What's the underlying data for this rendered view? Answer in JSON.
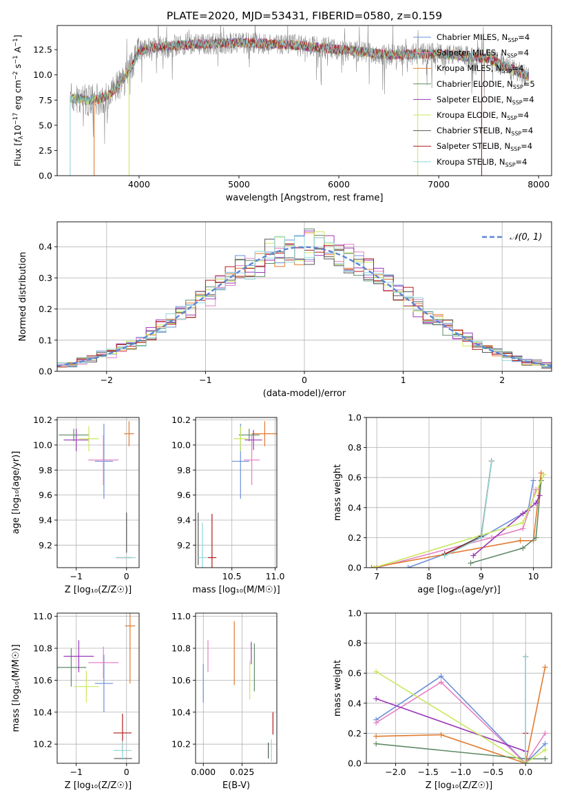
{
  "figure": {
    "title": "PLATE=2020, MJD=53431, FIBERID=0580, z=0.159"
  },
  "colors": {
    "chabrier_miles": "#6a8fd8",
    "salpeter_miles": "#e57fc4",
    "kroupa_miles": "#e07a2f",
    "chabrier_elodie": "#5f8a66",
    "salpeter_elodie": "#9a36b8",
    "kroupa_elodie": "#c7e85a",
    "chabrier_stelib": "#555555",
    "salpeter_stelib": "#b01818",
    "kroupa_stelib": "#8fd6d6",
    "data": "#888888"
  },
  "chart_data": [
    {
      "id": "spectrum",
      "type": "line",
      "title": "PLATE=2020, MJD=53431, FIBERID=0580, z=0.159",
      "xlabel": "wavelength [Angstrom, rest frame]",
      "ylabel_parts": [
        "Flux [",
        "f",
        "λ",
        "10",
        "−17",
        " erg cm",
        "−2",
        " s",
        "−1",
        " A",
        "−1",
        "]"
      ],
      "xlim": [
        3180,
        8130
      ],
      "ylim": [
        0,
        14.9
      ],
      "xticks": [
        4000,
        5000,
        6000,
        7000,
        8000
      ],
      "yticks": [
        0.0,
        2.5,
        5.0,
        7.5,
        10.0,
        12.5
      ],
      "ytick_labels": [
        "0.0",
        "2.5",
        "5.0",
        "7.5",
        "10.0",
        "12.5"
      ],
      "legend": "right",
      "series": [
        {
          "key": "chabrier_miles",
          "name": "Chabrier MILES",
          "nssp": "4"
        },
        {
          "key": "salpeter_miles",
          "name": "Salpeter MILES",
          "nssp": "4"
        },
        {
          "key": "kroupa_miles",
          "name": "Kroupa MILES",
          "nssp": "4"
        },
        {
          "key": "chabrier_elodie",
          "name": "Chabrier ELODIE",
          "nssp": "5"
        },
        {
          "key": "salpeter_elodie",
          "name": "Salpeter ELODIE",
          "nssp": "4"
        },
        {
          "key": "kroupa_elodie",
          "name": "Kroupa ELODIE",
          "nssp": "4"
        },
        {
          "key": "chabrier_stelib",
          "name": "Chabrier STELIB",
          "nssp": "4"
        },
        {
          "key": "salpeter_stelib",
          "name": "Salpeter STELIB",
          "nssp": "4"
        },
        {
          "key": "kroupa_stelib",
          "name": "Kroupa STELIB",
          "nssp": "4"
        }
      ],
      "continuum": {
        "x": [
          3310,
          3400,
          3500,
          3600,
          3700,
          3800,
          3900,
          4000,
          4200,
          4500,
          5000,
          5500,
          6000,
          6500,
          7000,
          7500,
          7900
        ],
        "y": [
          7.7,
          7.6,
          7.5,
          7.6,
          8.0,
          9.0,
          10.4,
          12.4,
          12.8,
          13.0,
          13.2,
          13.0,
          12.5,
          12.0,
          12.1,
          11.6,
          9.8
        ]
      },
      "model_starts": [
        3310,
        3310,
        3310,
        3310,
        3910,
        3310,
        3310,
        3560,
        3310
      ],
      "cutoffs": [
        {
          "x": 3310,
          "color": "kroupa_stelib"
        },
        {
          "x": 3550,
          "color": "kroupa_miles"
        },
        {
          "x": 3900,
          "color": "kroupa_elodie"
        },
        {
          "x": 6790,
          "color": "kroupa_elodie"
        },
        {
          "x": 7430,
          "color": "salpeter_stelib"
        }
      ]
    },
    {
      "id": "residuals",
      "type": "histogram",
      "xlabel": "(data-model)/error",
      "ylabel": "Normed distribution",
      "xlim": [
        -2.5,
        2.5
      ],
      "ylim": [
        0,
        0.48
      ],
      "xticks": [
        -2,
        -1,
        0,
        1,
        2
      ],
      "yticks": [
        0.0,
        0.1,
        0.2,
        0.3,
        0.4
      ],
      "ytick_labels": [
        "0.0",
        "0.1",
        "0.2",
        "0.3",
        "0.4"
      ],
      "bin_width": 0.1,
      "legend": {
        "label": "𝒩(0, 1)",
        "position": "top-right"
      },
      "reference_curve": "normal(0,1)"
    },
    {
      "id": "age-vs-z",
      "type": "scatter",
      "xlabel": "Z [log₁₀(Z/Z☉)]",
      "ylabel": "age  [log₁₀(age/yr)]",
      "xlim": [
        -1.38,
        0.25
      ],
      "ylim": [
        9.02,
        10.22
      ],
      "xticks": [
        -1,
        0
      ],
      "yticks": [
        9.2,
        9.4,
        9.6,
        9.8,
        10.0,
        10.2
      ],
      "points": [
        {
          "key": "chabrier_miles",
          "x": -0.45,
          "y": 9.87,
          "xerr": 0.18,
          "yerr": 0.3
        },
        {
          "key": "salpeter_miles",
          "x": -0.46,
          "y": 9.88,
          "xerr": 0.3,
          "yerr": 0.2
        },
        {
          "key": "kroupa_miles",
          "x": 0.05,
          "y": 10.09,
          "xerr": 0.1,
          "yerr": 0.1
        },
        {
          "key": "chabrier_elodie",
          "x": -1.05,
          "y": 10.08,
          "xerr": 0.3,
          "yerr": 0.05
        },
        {
          "key": "salpeter_elodie",
          "x": -1.0,
          "y": 10.04,
          "xerr": 0.25,
          "yerr": 0.09
        },
        {
          "key": "kroupa_elodie",
          "x": -0.75,
          "y": 10.05,
          "xerr": 0.2,
          "yerr": 0.1
        },
        {
          "key": "chabrier_stelib",
          "x": 0.0,
          "y": 9.3,
          "xerr": 0.0,
          "yerr": 0.16
        },
        {
          "key": "salpeter_stelib",
          "x": -0.05,
          "y": 9.1,
          "xerr": 0.15,
          "yerr": 0.0
        },
        {
          "key": "kroupa_stelib",
          "x": -0.02,
          "y": 9.1,
          "xerr": 0.2,
          "yerr": 0.0
        }
      ]
    },
    {
      "id": "age-vs-mass",
      "type": "scatter",
      "xlabel": "mass [log₁₀(M/M☉)]",
      "ylabel": "",
      "xlim": [
        10.08,
        11.02
      ],
      "ylim": [
        9.02,
        10.22
      ],
      "xticks": [
        10.5,
        11.0
      ],
      "yticks": [
        9.2,
        9.4,
        9.6,
        9.8,
        10.0,
        10.2
      ],
      "points": [
        {
          "key": "chabrier_miles",
          "x": 10.6,
          "y": 9.87,
          "xerr": 0.1,
          "yerr": 0.3
        },
        {
          "key": "salpeter_miles",
          "x": 10.73,
          "y": 9.88,
          "xerr": 0.09,
          "yerr": 0.2
        },
        {
          "key": "kroupa_miles",
          "x": 10.88,
          "y": 10.09,
          "xerr": 0.15,
          "yerr": 0.1
        },
        {
          "key": "chabrier_elodie",
          "x": 10.7,
          "y": 10.08,
          "xerr": 0.12,
          "yerr": 0.05
        },
        {
          "key": "salpeter_elodie",
          "x": 10.75,
          "y": 10.04,
          "xerr": 0.1,
          "yerr": 0.08
        },
        {
          "key": "kroupa_elodie",
          "x": 10.6,
          "y": 10.05,
          "xerr": 0.08,
          "yerr": 0.1
        },
        {
          "key": "chabrier_stelib",
          "x": 10.11,
          "y": 9.25,
          "xerr": 0.0,
          "yerr": 0.21
        },
        {
          "key": "salpeter_stelib",
          "x": 10.27,
          "y": 9.1,
          "xerr": 0.05,
          "yerr": 0.35
        },
        {
          "key": "kroupa_stelib",
          "x": 10.16,
          "y": 9.1,
          "xerr": 0.05,
          "yerr": 0.28
        }
      ]
    },
    {
      "id": "mass-weight-vs-age",
      "type": "line",
      "xlabel": "age  [log₁₀(age/yr)]",
      "ylabel": "mass weight",
      "xlim": [
        6.8,
        10.35
      ],
      "ylim": [
        0,
        1.0
      ],
      "xticks": [
        7,
        8,
        9,
        10
      ],
      "yticks": [
        0.0,
        0.2,
        0.4,
        0.6,
        0.8,
        1.0
      ],
      "series": [
        {
          "key": "chabrier_miles",
          "x": [
            7.6,
            8.3,
            9.0,
            9.9,
            10.0
          ],
          "y": [
            0.0,
            0.09,
            0.2,
            0.38,
            0.58
          ]
        },
        {
          "key": "salpeter_miles",
          "x": [
            7.0,
            9.2,
            9.8,
            10.05
          ],
          "y": [
            0.0,
            0.2,
            0.26,
            0.52
          ]
        },
        {
          "key": "kroupa_miles",
          "x": [
            6.9,
            9.75,
            10.0,
            10.15
          ],
          "y": [
            0.0,
            0.18,
            0.18,
            0.63
          ]
        },
        {
          "key": "chabrier_elodie",
          "x": [
            8.8,
            9.8,
            10.05,
            10.15
          ],
          "y": [
            0.03,
            0.13,
            0.2,
            0.58
          ]
        },
        {
          "key": "salpeter_elodie",
          "x": [
            8.85,
            9.8,
            10.05,
            10.12
          ],
          "y": [
            0.08,
            0.36,
            0.43,
            0.48
          ]
        },
        {
          "key": "kroupa_elodie",
          "x": [
            6.95,
            9.8,
            10.2
          ],
          "y": [
            0.0,
            0.3,
            0.62
          ]
        },
        {
          "key": "chabrier_stelib",
          "x": [
            8.3,
            9.0,
            9.2
          ],
          "y": [
            0.09,
            0.21,
            0.71
          ]
        },
        {
          "key": "salpeter_stelib",
          "x": [
            8.3,
            9.0,
            9.2
          ],
          "y": [
            0.09,
            0.2,
            0.71
          ]
        },
        {
          "key": "kroupa_stelib",
          "x": [
            8.3,
            9.0,
            9.2
          ],
          "y": [
            0.08,
            0.2,
            0.71
          ]
        }
      ]
    },
    {
      "id": "mass-vs-z",
      "type": "scatter",
      "xlabel": "Z [log₁₀(Z/Z☉)]",
      "ylabel": "mass [log₁₀(M/M☉)]",
      "xlim": [
        -1.38,
        0.25
      ],
      "ylim": [
        10.08,
        11.02
      ],
      "xticks": [
        -1,
        0
      ],
      "yticks": [
        10.2,
        10.4,
        10.6,
        10.8,
        11.0
      ],
      "points": [
        {
          "key": "chabrier_miles",
          "x": -0.45,
          "y": 10.58,
          "xerr": 0.18,
          "yerr": 0.18
        },
        {
          "key": "salpeter_miles",
          "x": -0.46,
          "y": 10.71,
          "xerr": 0.3,
          "yerr": 0.1
        },
        {
          "key": "kroupa_miles",
          "x": 0.07,
          "y": 10.94,
          "xerr": 0.1,
          "yerr": 0.36
        },
        {
          "key": "chabrier_elodie",
          "x": -1.1,
          "y": 10.68,
          "xerr": 0.3,
          "yerr": 0.12
        },
        {
          "key": "salpeter_elodie",
          "x": -0.95,
          "y": 10.75,
          "xerr": 0.3,
          "yerr": 0.1
        },
        {
          "key": "kroupa_elodie",
          "x": -0.8,
          "y": 10.56,
          "xerr": 0.25,
          "yerr": 0.1
        },
        {
          "key": "chabrier_stelib",
          "x": -0.07,
          "y": 10.11,
          "xerr": 0.18,
          "yerr": 0.0
        },
        {
          "key": "salpeter_stelib",
          "x": -0.08,
          "y": 10.27,
          "xerr": 0.18,
          "yerr": 0.12
        },
        {
          "key": "kroupa_stelib",
          "x": -0.08,
          "y": 10.16,
          "xerr": 0.18,
          "yerr": 0.06
        }
      ]
    },
    {
      "id": "mass-vs-ebv",
      "type": "scatter",
      "xlabel": "E(B-V)",
      "ylabel": "",
      "xlim": [
        -0.005,
        0.0475
      ],
      "ylim": [
        10.08,
        11.02
      ],
      "xticks": [
        0.0,
        0.025
      ],
      "xtick_labels": [
        "0.000",
        "0.025"
      ],
      "yticks": [
        10.2,
        10.4,
        10.6,
        10.8,
        11.0
      ],
      "points": [
        {
          "key": "chabrier_miles",
          "x": 0.0,
          "y": 10.58,
          "xerr": 0.0,
          "yerr": 0.12
        },
        {
          "key": "salpeter_miles",
          "x": 0.003,
          "y": 10.75,
          "xerr": 0.0,
          "yerr": 0.1
        },
        {
          "key": "kroupa_miles",
          "x": 0.02,
          "y": 10.77,
          "xerr": 0.0,
          "yerr": 0.2
        },
        {
          "key": "chabrier_elodie",
          "x": 0.033,
          "y": 10.68,
          "xerr": 0.0,
          "yerr": 0.15
        },
        {
          "key": "salpeter_elodie",
          "x": 0.031,
          "y": 10.77,
          "xerr": 0.0,
          "yerr": 0.07
        },
        {
          "key": "kroupa_elodie",
          "x": 0.03,
          "y": 10.6,
          "xerr": 0.0,
          "yerr": 0.12
        },
        {
          "key": "chabrier_stelib",
          "x": 0.042,
          "y": 10.16,
          "xerr": 0.0,
          "yerr": 0.05
        },
        {
          "key": "salpeter_stelib",
          "x": 0.045,
          "y": 10.33,
          "xerr": 0.0,
          "yerr": 0.07
        },
        {
          "key": "kroupa_stelib",
          "x": 0.044,
          "y": 10.16,
          "xerr": 0.0,
          "yerr": 0.07
        }
      ]
    },
    {
      "id": "mass-weight-vs-z",
      "type": "line",
      "xlabel": "Z [log₁₀(Z/Z☉)]",
      "ylabel": "mass weight",
      "xlim": [
        -2.45,
        0.4
      ],
      "ylim": [
        0,
        1.0
      ],
      "xticks": [
        -2.0,
        -1.5,
        -1.0,
        -0.5,
        0.0
      ],
      "xtick_labels": [
        "−2.0",
        "−1.5",
        "−1.0",
        "−0.5",
        "0.0"
      ],
      "yticks": [
        0.0,
        0.2,
        0.4,
        0.6,
        0.8,
        1.0
      ],
      "series": [
        {
          "key": "chabrier_miles",
          "x": [
            -2.3,
            -1.3,
            0.0,
            0.3
          ],
          "y": [
            0.29,
            0.58,
            0.0,
            0.13
          ]
        },
        {
          "key": "salpeter_miles",
          "x": [
            -2.3,
            -1.3,
            0.0,
            0.3
          ],
          "y": [
            0.27,
            0.54,
            0.0,
            0.2
          ]
        },
        {
          "key": "kroupa_miles",
          "x": [
            -2.3,
            -1.3,
            0.0,
            0.3
          ],
          "y": [
            0.18,
            0.19,
            0.0,
            0.64
          ]
        },
        {
          "key": "chabrier_elodie",
          "x": [
            -2.3,
            0.0,
            0.3
          ],
          "y": [
            0.13,
            0.03,
            0.03
          ]
        },
        {
          "key": "salpeter_elodie",
          "x": [
            -2.3,
            0.0
          ],
          "y": [
            0.43,
            0.08
          ]
        },
        {
          "key": "kroupa_elodie",
          "x": [
            -2.3,
            0.0,
            0.3
          ],
          "y": [
            0.61,
            0.0,
            0.09
          ]
        },
        {
          "key": "chabrier_stelib",
          "x": [
            0.0,
            0.0
          ],
          "y": [
            0.0,
            0.71
          ]
        },
        {
          "key": "salpeter_stelib",
          "x": [
            0.0,
            0.0
          ],
          "y": [
            0.0,
            0.2
          ]
        },
        {
          "key": "kroupa_stelib",
          "x": [
            0.0,
            0.0
          ],
          "y": [
            0.0,
            0.71
          ]
        }
      ]
    }
  ]
}
